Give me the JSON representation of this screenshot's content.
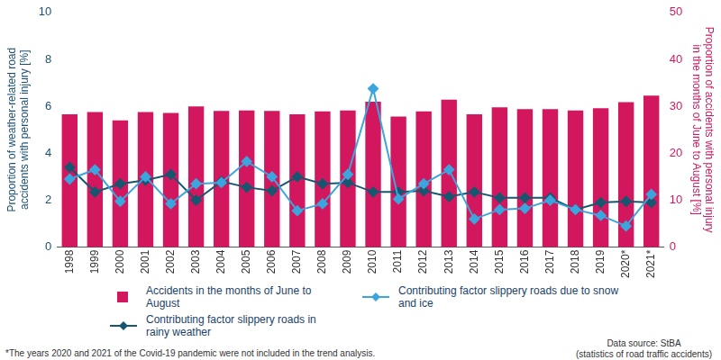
{
  "chart_data": {
    "type": "bar",
    "categories": [
      "1998",
      "1999",
      "2000",
      "2001",
      "2002",
      "2003",
      "2004",
      "2005",
      "2006",
      "2007",
      "2008",
      "2009",
      "2010",
      "2011",
      "2012",
      "2013",
      "2014",
      "2015",
      "2016",
      "2017",
      "2018",
      "2019",
      "2020*",
      "2021*"
    ],
    "series": [
      {
        "name": "Accidents in the months of June to August",
        "type": "bar",
        "color": "#d3175e",
        "axis": "y2",
        "values": [
          28.3,
          28.8,
          27.0,
          28.8,
          28.6,
          30.0,
          29.0,
          29.1,
          29.0,
          28.3,
          28.9,
          29.1,
          31.0,
          27.8,
          28.9,
          31.4,
          28.3,
          29.8,
          29.4,
          29.4,
          29.1,
          29.6,
          30.9,
          32.3
        ]
      },
      {
        "name": "Contributing factor slippery roads due to snow and ice",
        "type": "line",
        "color": "#3aa6dd",
        "marker": "diamond",
        "line_style": "solid",
        "values": [
          2.9,
          3.3,
          1.95,
          3.0,
          1.85,
          2.7,
          2.75,
          3.65,
          3.0,
          1.55,
          1.85,
          3.1,
          6.75,
          2.05,
          2.7,
          3.3,
          1.2,
          1.6,
          1.65,
          2.0,
          1.6,
          1.35,
          0.9,
          2.25
        ]
      },
      {
        "name": "Contributing factor slippery roads in rainy weather",
        "type": "line",
        "color": "#17566f",
        "marker": "diamond",
        "line_style": "solid",
        "values": [
          3.4,
          2.35,
          2.7,
          2.85,
          3.1,
          2.0,
          2.8,
          2.55,
          2.4,
          3.0,
          2.7,
          2.75,
          2.35,
          2.35,
          2.4,
          2.15,
          2.35,
          2.1,
          2.1,
          2.1,
          1.6,
          1.9,
          1.95,
          1.9
        ]
      }
    ],
    "y_label": [
      "Proportion of weather-related road",
      "accidents with personal injury [%]"
    ],
    "y2_label": [
      "Proportion of accidents with personal injury",
      "in the months of June to August [%]"
    ],
    "ylim": [
      0,
      10
    ],
    "yticks": [
      0,
      2,
      4,
      6,
      8,
      10
    ],
    "y2lim": [
      0,
      50
    ],
    "y2ticks": [
      0,
      10,
      20,
      30,
      40,
      50
    ],
    "grid": false,
    "legend": "bottom",
    "footnote": "*The years 2020 and 2021 of the Covid-19 pandemic were not included in the trend analysis.",
    "source": [
      "Data source: StBA",
      "(statistics of road traffic accidents)"
    ]
  }
}
